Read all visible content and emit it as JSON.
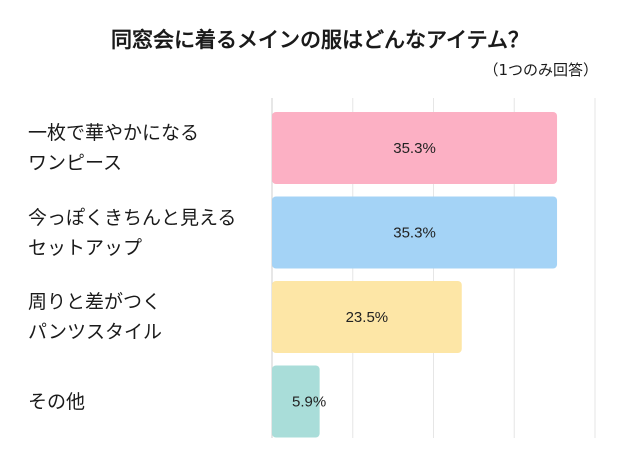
{
  "chart_data": {
    "type": "bar",
    "orientation": "horizontal",
    "title": "同窓会に着るメインの服はどんなアイテム？",
    "subtitle": "（1つのみ回答）",
    "categories": [
      "一枚で華やかになる\nワンピース",
      "今っぽくきちんと見える\nセットアップ",
      "周りと差がつく\nパンツスタイル",
      "その他"
    ],
    "values": [
      35.3,
      35.3,
      23.5,
      5.9
    ],
    "value_labels": [
      "35.3%",
      "35.3%",
      "23.5%",
      "5.9%"
    ],
    "bar_colors": [
      "#fcb0c4",
      "#a4d3f6",
      "#fde6a6",
      "#a9ddd9"
    ],
    "xlim": [
      0,
      40
    ],
    "grid": true,
    "legend": "none"
  }
}
